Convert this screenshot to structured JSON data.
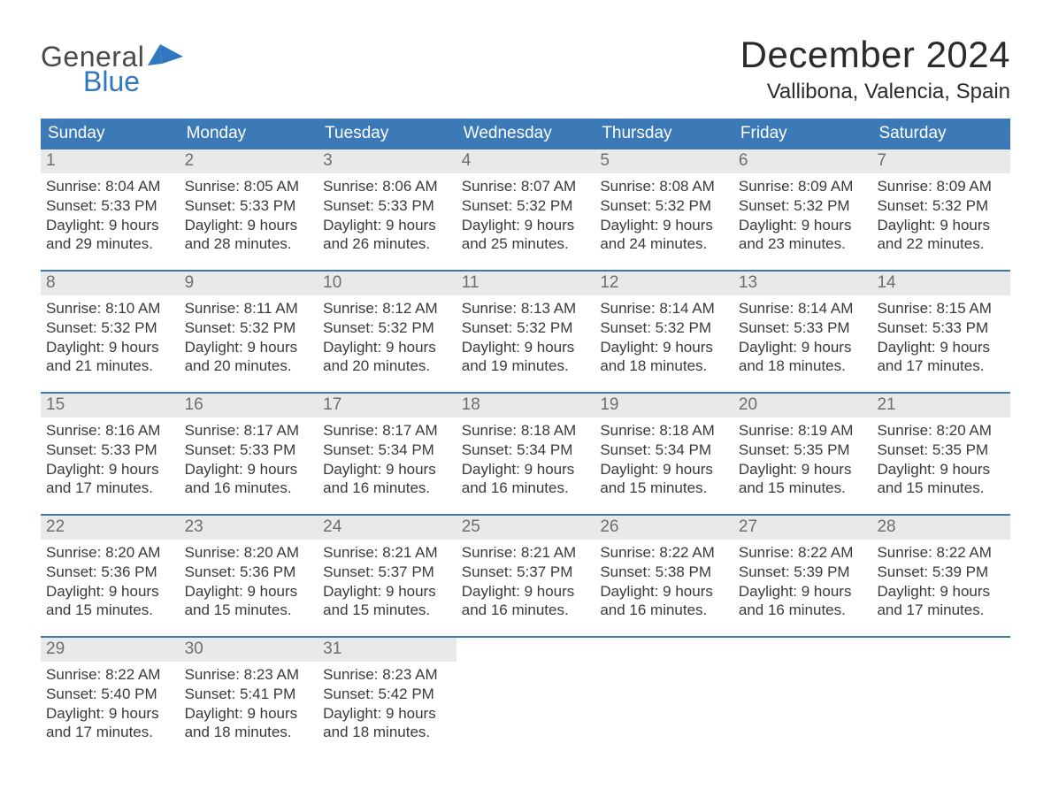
{
  "colors": {
    "header_bg": "#3b79b7",
    "header_text": "#ffffff",
    "daynum_bg": "#e9e9e9",
    "daynum_text": "#6e6e6e",
    "body_text": "#3a3a3a",
    "week_border": "#3b79b7",
    "logo_gray": "#4a4a4a",
    "logo_blue": "#2f78bf",
    "page_bg": "#ffffff"
  },
  "logo": {
    "line1": "General",
    "line2": "Blue"
  },
  "title": "December 2024",
  "location": "Vallibona, Valencia, Spain",
  "weekdays": [
    "Sunday",
    "Monday",
    "Tuesday",
    "Wednesday",
    "Thursday",
    "Friday",
    "Saturday"
  ],
  "labels": {
    "sunrise": "Sunrise:",
    "sunset": "Sunset:",
    "daylight": "Daylight:",
    "and": "and",
    "minutes": "minutes."
  },
  "weeks": [
    [
      {
        "n": "1",
        "sunrise": "8:04 AM",
        "sunset": "5:33 PM",
        "dl_h": "9 hours",
        "dl_m": "29"
      },
      {
        "n": "2",
        "sunrise": "8:05 AM",
        "sunset": "5:33 PM",
        "dl_h": "9 hours",
        "dl_m": "28"
      },
      {
        "n": "3",
        "sunrise": "8:06 AM",
        "sunset": "5:33 PM",
        "dl_h": "9 hours",
        "dl_m": "26"
      },
      {
        "n": "4",
        "sunrise": "8:07 AM",
        "sunset": "5:32 PM",
        "dl_h": "9 hours",
        "dl_m": "25"
      },
      {
        "n": "5",
        "sunrise": "8:08 AM",
        "sunset": "5:32 PM",
        "dl_h": "9 hours",
        "dl_m": "24"
      },
      {
        "n": "6",
        "sunrise": "8:09 AM",
        "sunset": "5:32 PM",
        "dl_h": "9 hours",
        "dl_m": "23"
      },
      {
        "n": "7",
        "sunrise": "8:09 AM",
        "sunset": "5:32 PM",
        "dl_h": "9 hours",
        "dl_m": "22"
      }
    ],
    [
      {
        "n": "8",
        "sunrise": "8:10 AM",
        "sunset": "5:32 PM",
        "dl_h": "9 hours",
        "dl_m": "21"
      },
      {
        "n": "9",
        "sunrise": "8:11 AM",
        "sunset": "5:32 PM",
        "dl_h": "9 hours",
        "dl_m": "20"
      },
      {
        "n": "10",
        "sunrise": "8:12 AM",
        "sunset": "5:32 PM",
        "dl_h": "9 hours",
        "dl_m": "20"
      },
      {
        "n": "11",
        "sunrise": "8:13 AM",
        "sunset": "5:32 PM",
        "dl_h": "9 hours",
        "dl_m": "19"
      },
      {
        "n": "12",
        "sunrise": "8:14 AM",
        "sunset": "5:32 PM",
        "dl_h": "9 hours",
        "dl_m": "18"
      },
      {
        "n": "13",
        "sunrise": "8:14 AM",
        "sunset": "5:33 PM",
        "dl_h": "9 hours",
        "dl_m": "18"
      },
      {
        "n": "14",
        "sunrise": "8:15 AM",
        "sunset": "5:33 PM",
        "dl_h": "9 hours",
        "dl_m": "17"
      }
    ],
    [
      {
        "n": "15",
        "sunrise": "8:16 AM",
        "sunset": "5:33 PM",
        "dl_h": "9 hours",
        "dl_m": "17"
      },
      {
        "n": "16",
        "sunrise": "8:17 AM",
        "sunset": "5:33 PM",
        "dl_h": "9 hours",
        "dl_m": "16"
      },
      {
        "n": "17",
        "sunrise": "8:17 AM",
        "sunset": "5:34 PM",
        "dl_h": "9 hours",
        "dl_m": "16"
      },
      {
        "n": "18",
        "sunrise": "8:18 AM",
        "sunset": "5:34 PM",
        "dl_h": "9 hours",
        "dl_m": "16"
      },
      {
        "n": "19",
        "sunrise": "8:18 AM",
        "sunset": "5:34 PM",
        "dl_h": "9 hours",
        "dl_m": "15"
      },
      {
        "n": "20",
        "sunrise": "8:19 AM",
        "sunset": "5:35 PM",
        "dl_h": "9 hours",
        "dl_m": "15"
      },
      {
        "n": "21",
        "sunrise": "8:20 AM",
        "sunset": "5:35 PM",
        "dl_h": "9 hours",
        "dl_m": "15"
      }
    ],
    [
      {
        "n": "22",
        "sunrise": "8:20 AM",
        "sunset": "5:36 PM",
        "dl_h": "9 hours",
        "dl_m": "15"
      },
      {
        "n": "23",
        "sunrise": "8:20 AM",
        "sunset": "5:36 PM",
        "dl_h": "9 hours",
        "dl_m": "15"
      },
      {
        "n": "24",
        "sunrise": "8:21 AM",
        "sunset": "5:37 PM",
        "dl_h": "9 hours",
        "dl_m": "15"
      },
      {
        "n": "25",
        "sunrise": "8:21 AM",
        "sunset": "5:37 PM",
        "dl_h": "9 hours",
        "dl_m": "16"
      },
      {
        "n": "26",
        "sunrise": "8:22 AM",
        "sunset": "5:38 PM",
        "dl_h": "9 hours",
        "dl_m": "16"
      },
      {
        "n": "27",
        "sunrise": "8:22 AM",
        "sunset": "5:39 PM",
        "dl_h": "9 hours",
        "dl_m": "16"
      },
      {
        "n": "28",
        "sunrise": "8:22 AM",
        "sunset": "5:39 PM",
        "dl_h": "9 hours",
        "dl_m": "17"
      }
    ],
    [
      {
        "n": "29",
        "sunrise": "8:22 AM",
        "sunset": "5:40 PM",
        "dl_h": "9 hours",
        "dl_m": "17"
      },
      {
        "n": "30",
        "sunrise": "8:23 AM",
        "sunset": "5:41 PM",
        "dl_h": "9 hours",
        "dl_m": "18"
      },
      {
        "n": "31",
        "sunrise": "8:23 AM",
        "sunset": "5:42 PM",
        "dl_h": "9 hours",
        "dl_m": "18"
      },
      null,
      null,
      null,
      null
    ]
  ]
}
